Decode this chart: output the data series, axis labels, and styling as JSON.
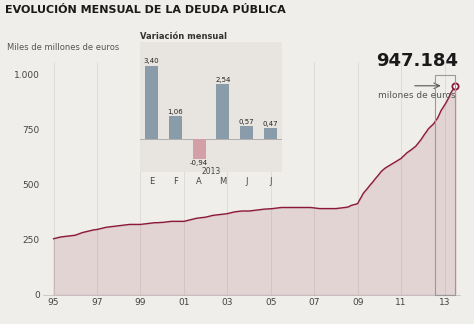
{
  "title": "EVOLUCIÓN MENSUAL DE LA DEUDA PÚBLICA",
  "ylabel": "Miles de millones de euros",
  "bg_color": "#f0eeea",
  "inset_bg": "#e8e5e0",
  "line_color": "#8b1a3a",
  "highlight_value": "947.184",
  "highlight_label": "milones de euros",
  "x_ticks": [
    "95",
    "97",
    "99",
    "01",
    "03",
    "05",
    "07",
    "09",
    "11",
    "13"
  ],
  "x_tick_years": [
    1995,
    1997,
    1999,
    2001,
    2003,
    2005,
    2007,
    2009,
    2011,
    2013
  ],
  "y_ticks_labels": [
    "0",
    "250",
    "500",
    "750",
    "1.000"
  ],
  "y_ticks_vals": [
    0,
    250,
    500,
    750,
    1000
  ],
  "main_data": {
    "years": [
      1995.0,
      1995.08,
      1995.17,
      1995.25,
      1995.33,
      1995.42,
      1995.5,
      1995.58,
      1995.67,
      1995.75,
      1995.83,
      1995.92,
      1996.0,
      1996.08,
      1996.17,
      1996.25,
      1996.33,
      1996.42,
      1996.5,
      1996.58,
      1996.67,
      1996.75,
      1996.83,
      1996.92,
      1997.0,
      1997.08,
      1997.17,
      1997.25,
      1997.33,
      1997.42,
      1997.5,
      1997.58,
      1997.67,
      1997.75,
      1997.83,
      1997.92,
      1998.0,
      1998.08,
      1998.17,
      1998.25,
      1998.33,
      1998.42,
      1998.5,
      1998.58,
      1998.67,
      1998.75,
      1998.83,
      1998.92,
      1999.0,
      1999.08,
      1999.17,
      1999.25,
      1999.33,
      1999.42,
      1999.5,
      1999.58,
      1999.67,
      1999.75,
      1999.83,
      1999.92,
      2000.0,
      2000.08,
      2000.17,
      2000.25,
      2000.33,
      2000.42,
      2000.5,
      2000.58,
      2000.67,
      2000.75,
      2000.83,
      2000.92,
      2001.0,
      2001.08,
      2001.17,
      2001.25,
      2001.33,
      2001.42,
      2001.5,
      2001.58,
      2001.67,
      2001.75,
      2001.83,
      2001.92,
      2002.0,
      2002.08,
      2002.17,
      2002.25,
      2002.33,
      2002.42,
      2002.5,
      2002.58,
      2002.67,
      2002.75,
      2002.83,
      2002.92,
      2003.0,
      2003.08,
      2003.17,
      2003.25,
      2003.33,
      2003.42,
      2003.5,
      2003.58,
      2003.67,
      2003.75,
      2003.83,
      2003.92,
      2004.0,
      2004.08,
      2004.17,
      2004.25,
      2004.33,
      2004.42,
      2004.5,
      2004.58,
      2004.67,
      2004.75,
      2004.83,
      2004.92,
      2005.0,
      2005.08,
      2005.17,
      2005.25,
      2005.33,
      2005.42,
      2005.5,
      2005.58,
      2005.67,
      2005.75,
      2005.83,
      2005.92,
      2006.0,
      2006.08,
      2006.17,
      2006.25,
      2006.33,
      2006.42,
      2006.5,
      2006.58,
      2006.67,
      2006.75,
      2006.83,
      2006.92,
      2007.0,
      2007.08,
      2007.17,
      2007.25,
      2007.33,
      2007.42,
      2007.5,
      2007.58,
      2007.67,
      2007.75,
      2007.83,
      2007.92,
      2008.0,
      2008.08,
      2008.17,
      2008.25,
      2008.33,
      2008.42,
      2008.5,
      2008.58,
      2008.67,
      2008.75,
      2008.83,
      2008.92,
      2009.0,
      2009.08,
      2009.17,
      2009.25,
      2009.33,
      2009.42,
      2009.5,
      2009.58,
      2009.67,
      2009.75,
      2009.83,
      2009.92,
      2010.0,
      2010.08,
      2010.17,
      2010.25,
      2010.33,
      2010.42,
      2010.5,
      2010.58,
      2010.67,
      2010.75,
      2010.83,
      2010.92,
      2011.0,
      2011.08,
      2011.17,
      2011.25,
      2011.33,
      2011.42,
      2011.5,
      2011.58,
      2011.67,
      2011.75,
      2011.83,
      2011.92,
      2012.0,
      2012.08,
      2012.17,
      2012.25,
      2012.33,
      2012.42,
      2012.5,
      2012.58,
      2012.67,
      2012.75,
      2012.83,
      2012.92,
      2013.0,
      2013.08,
      2013.17,
      2013.25,
      2013.33,
      2013.42,
      2013.5
    ],
    "values": [
      255,
      257,
      259,
      261,
      263,
      264,
      265,
      266,
      267,
      268,
      269,
      270,
      271,
      274,
      277,
      280,
      283,
      285,
      287,
      289,
      291,
      293,
      295,
      296,
      297,
      299,
      301,
      303,
      305,
      307,
      308,
      309,
      310,
      311,
      312,
      313,
      314,
      315,
      316,
      317,
      318,
      319,
      320,
      320,
      320,
      320,
      320,
      320,
      320,
      321,
      322,
      323,
      324,
      325,
      326,
      327,
      328,
      328,
      328,
      329,
      329,
      330,
      331,
      332,
      333,
      334,
      334,
      334,
      334,
      334,
      334,
      334,
      334,
      336,
      338,
      340,
      342,
      344,
      346,
      348,
      349,
      350,
      351,
      352,
      353,
      355,
      357,
      359,
      361,
      362,
      363,
      364,
      365,
      366,
      367,
      368,
      369,
      371,
      373,
      375,
      377,
      378,
      379,
      380,
      381,
      381,
      381,
      381,
      381,
      382,
      383,
      384,
      385,
      386,
      387,
      388,
      389,
      390,
      390,
      391,
      391,
      392,
      393,
      394,
      395,
      396,
      397,
      397,
      397,
      397,
      397,
      397,
      397,
      397,
      397,
      397,
      397,
      397,
      397,
      397,
      397,
      397,
      397,
      396,
      395,
      394,
      393,
      392,
      392,
      392,
      392,
      392,
      392,
      392,
      392,
      392,
      392,
      393,
      394,
      395,
      396,
      397,
      398,
      400,
      405,
      408,
      410,
      412,
      415,
      430,
      445,
      460,
      470,
      480,
      490,
      500,
      510,
      520,
      530,
      540,
      550,
      560,
      568,
      575,
      580,
      585,
      590,
      595,
      600,
      605,
      610,
      615,
      620,
      628,
      636,
      644,
      650,
      656,
      662,
      668,
      675,
      685,
      695,
      706,
      718,
      730,
      742,
      754,
      762,
      770,
      778,
      790,
      802,
      818,
      836,
      850,
      862,
      875,
      892,
      910,
      925,
      937,
      947
    ]
  },
  "inset": {
    "months": [
      "E",
      "F",
      "A",
      "M",
      "J",
      "J"
    ],
    "values": [
      3.4,
      1.06,
      -0.94,
      2.54,
      0.57,
      0.47
    ],
    "pos_color": "#8a9baa",
    "neg_color": "#d4a0a8",
    "year_label": "2013",
    "title": "Variación mensual"
  }
}
